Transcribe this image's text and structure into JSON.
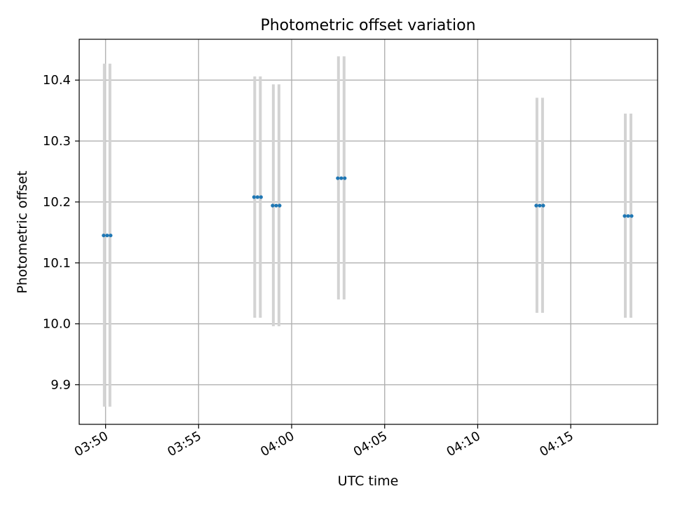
{
  "chart_data": {
    "type": "scatter",
    "title": "Photometric offset variation",
    "xlabel": "UTC time",
    "ylabel": "Photometric offset",
    "x_ticks": [
      "03:50",
      "03:55",
      "04:00",
      "04:05",
      "04:10",
      "04:15"
    ],
    "y_ticks": [
      "9.9",
      "10.0",
      "10.1",
      "10.2",
      "10.3",
      "10.4"
    ],
    "y_tick_values": [
      9.9,
      10.0,
      10.1,
      10.2,
      10.3,
      10.4
    ],
    "x_tick_minutes": [
      230,
      235,
      240,
      245,
      250,
      255
    ],
    "xlim": [
      "03:48:35",
      "04:19:40"
    ],
    "ylim": [
      9.835,
      10.467
    ],
    "grid": true,
    "series": [
      {
        "marker_color": "#1f77b4",
        "errorbar_color": "#d3d3d3",
        "points": [
          {
            "x": "03:50:05",
            "y": 10.145,
            "ylow": 9.864,
            "yhigh": 10.427
          },
          {
            "x": "03:58:10",
            "y": 10.208,
            "ylow": 10.01,
            "yhigh": 10.406
          },
          {
            "x": "03:59:10",
            "y": 10.194,
            "ylow": 9.996,
            "yhigh": 10.393
          },
          {
            "x": "04:02:40",
            "y": 10.239,
            "ylow": 10.04,
            "yhigh": 10.439
          },
          {
            "x": "04:13:20",
            "y": 10.194,
            "ylow": 10.018,
            "yhigh": 10.371
          },
          {
            "x": "04:18:05",
            "y": 10.177,
            "ylow": 10.01,
            "yhigh": 10.345
          }
        ]
      }
    ]
  }
}
